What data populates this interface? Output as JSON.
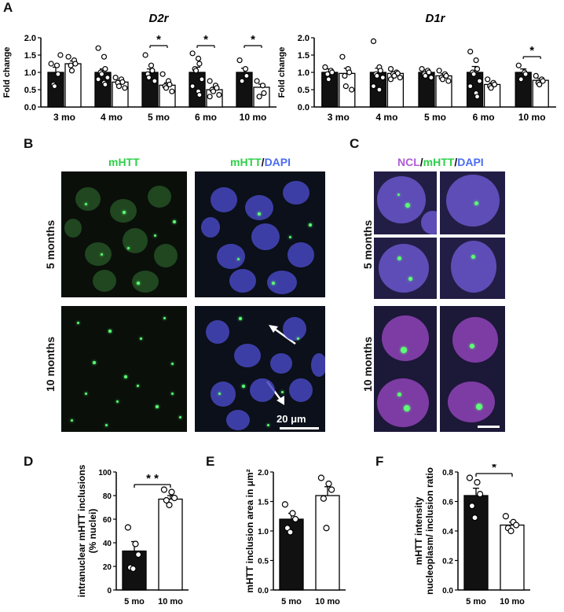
{
  "labels": {
    "A": "A",
    "B": "B",
    "C": "C",
    "D": "D",
    "E": "E",
    "F": "F"
  },
  "panel_b": {
    "col1": "mHTT",
    "col2_g": "mHTT",
    "col2_sep": "/",
    "col2_b": "DAPI",
    "row1": "5 months",
    "row2": "10 months",
    "scalebar": "20 μm"
  },
  "panel_c": {
    "h_m": "NCL",
    "h_sep1": "/",
    "h_g": "mHTT",
    "h_sep2": "/",
    "h_b": "DAPI",
    "row1": "5 months",
    "row2": "10 months"
  },
  "colors": {
    "green": "#2fcf49",
    "blue": "#4b6cf0",
    "magenta": "#b05cd6",
    "bar_fill": "#111111"
  },
  "chart_data": [
    {
      "id": "A1",
      "type": "bar",
      "title": "D2r",
      "ylabel": "Fold change",
      "ylim": [
        0,
        2.0
      ],
      "yticks": [
        "0.0",
        "0.5",
        "1.0",
        "1.5",
        "2.0"
      ],
      "categories": [
        "3 mo",
        "4 mo",
        "5 mo",
        "6 mo",
        "10 mo"
      ],
      "series": [
        {
          "fill": "black",
          "values": [
            1.0,
            1.0,
            1.0,
            1.0,
            1.0
          ],
          "errors": [
            0.15,
            0.1,
            0.1,
            0.15,
            0.12
          ],
          "points": [
            [
              1.25,
              1.2,
              0.95,
              0.65,
              0.6,
              1.5
            ],
            [
              1.7,
              1.45,
              1.1,
              1.0,
              0.95,
              0.85,
              0.8,
              0.7,
              0.65
            ],
            [
              1.5,
              1.2,
              1.05,
              0.95,
              0.85,
              0.75
            ],
            [
              1.55,
              1.4,
              1.25,
              1.1,
              1.05,
              0.8,
              0.6,
              0.45,
              0.35
            ],
            [
              1.35,
              1.1,
              0.9,
              0.75
            ]
          ]
        },
        {
          "fill": "white",
          "values": [
            1.25,
            0.72,
            0.63,
            0.5,
            0.57
          ],
          "errors": [
            0.08,
            0.05,
            0.07,
            0.07,
            0.09
          ],
          "points": [
            [
              1.45,
              1.35,
              1.25,
              1.2,
              1.05
            ],
            [
              0.85,
              0.8,
              0.72,
              0.7,
              0.6,
              0.55
            ],
            [
              0.95,
              0.75,
              0.65,
              0.6,
              0.55,
              0.45
            ],
            [
              0.75,
              0.62,
              0.55,
              0.5,
              0.45,
              0.35,
              0.3
            ],
            [
              0.75,
              0.62,
              0.4,
              0.3
            ]
          ]
        }
      ],
      "significance": [
        {
          "category": "5 mo",
          "label": "*"
        },
        {
          "category": "6 mo",
          "label": "*"
        },
        {
          "category": "10 mo",
          "label": "*"
        }
      ]
    },
    {
      "id": "A2",
      "type": "bar",
      "title": "D1r",
      "ylabel": "Fold change",
      "ylim": [
        0,
        2.0
      ],
      "yticks": [
        "0.0",
        "0.5",
        "1.0",
        "1.5",
        "2.0"
      ],
      "categories": [
        "3 mo",
        "4 mo",
        "5 mo",
        "6 mo",
        "10 mo"
      ],
      "series": [
        {
          "fill": "black",
          "values": [
            1.0,
            1.0,
            1.0,
            1.0,
            1.0
          ],
          "errors": [
            0.1,
            0.12,
            0.07,
            0.17,
            0.1
          ],
          "points": [
            [
              1.15,
              1.05,
              1.0,
              0.95,
              0.8
            ],
            [
              1.9,
              1.15,
              1.05,
              0.95,
              0.9,
              0.85,
              0.6,
              0.5
            ],
            [
              1.1,
              1.05,
              1.0,
              0.95,
              0.9,
              0.85
            ],
            [
              1.6,
              1.35,
              1.1,
              1.0,
              0.95,
              0.75,
              0.6,
              0.4,
              0.3
            ],
            [
              1.2,
              1.0,
              0.95,
              0.8
            ]
          ]
        },
        {
          "fill": "white",
          "values": [
            0.97,
            0.97,
            0.9,
            0.65,
            0.77
          ],
          "errors": [
            0.15,
            0.05,
            0.06,
            0.05,
            0.05
          ],
          "points": [
            [
              1.45,
              1.1,
              1.0,
              0.9,
              0.6,
              0.5
            ],
            [
              1.1,
              1.0,
              0.97,
              0.95,
              0.9,
              0.85,
              0.8
            ],
            [
              1.05,
              0.95,
              0.9,
              0.85,
              0.8,
              0.75
            ],
            [
              0.8,
              0.7,
              0.65,
              0.6,
              0.55
            ],
            [
              0.9,
              0.8,
              0.75,
              0.7,
              0.65
            ]
          ]
        }
      ],
      "significance": [
        {
          "category": "10 mo",
          "label": "*"
        }
      ]
    },
    {
      "id": "D",
      "type": "bar",
      "ylabel_lines": [
        "intranuclear mHTT inclusions",
        "(% nuclei)"
      ],
      "ylim": [
        0,
        100
      ],
      "yticks": [
        "0",
        "20",
        "40",
        "60",
        "80",
        "100"
      ],
      "categories": [
        "5 mo",
        "10 mo"
      ],
      "fills": [
        "black",
        "white"
      ],
      "values": [
        33,
        77
      ],
      "errors": [
        8,
        3
      ],
      "points": [
        [
          53,
          39,
          30,
          19,
          18
        ],
        [
          85,
          83,
          78,
          76,
          72
        ]
      ],
      "significance": "* *"
    },
    {
      "id": "E",
      "type": "bar",
      "ylabel": "mHTT inclusion area in μm²",
      "ylim": [
        0,
        2.0
      ],
      "yticks": [
        "0.0",
        "0.5",
        "1.0",
        "1.5",
        "2.0"
      ],
      "categories": [
        "5 mo",
        "10 mo"
      ],
      "fills": [
        "black",
        "white"
      ],
      "values": [
        1.2,
        1.6
      ],
      "errors": [
        0.1,
        0.15
      ],
      "points": [
        [
          1.45,
          1.3,
          1.2,
          1.05,
          0.98
        ],
        [
          1.9,
          1.8,
          1.7,
          1.55,
          1.05
        ]
      ]
    },
    {
      "id": "F",
      "type": "bar",
      "ylabel_lines": [
        "mHTT intensity",
        "nucleoplasm/ inclusion ratio"
      ],
      "ylim": [
        0,
        0.8
      ],
      "yticks": [
        "0.0",
        "0.2",
        "0.4",
        "0.6",
        "0.8"
      ],
      "categories": [
        "5 mo",
        "10 mo"
      ],
      "fills": [
        "black",
        "white"
      ],
      "values": [
        0.64,
        0.44
      ],
      "errors": [
        0.05,
        0.02
      ],
      "points": [
        [
          0.76,
          0.73,
          0.65,
          0.57,
          0.49
        ],
        [
          0.5,
          0.46,
          0.44,
          0.42,
          0.4
        ]
      ],
      "significance": "*"
    }
  ]
}
